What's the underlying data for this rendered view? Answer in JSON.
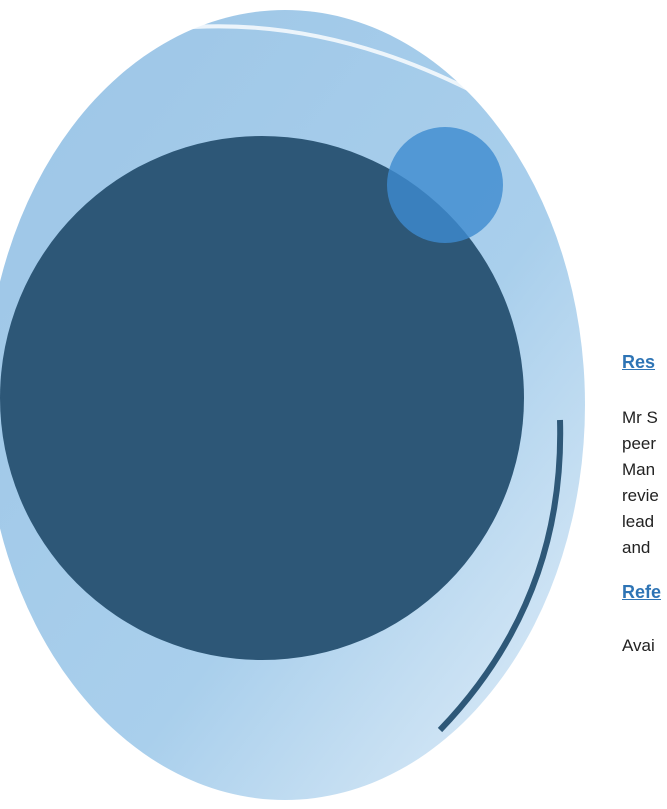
{
  "sections": [
    {
      "heading": "Res",
      "lines": [
        "Mr S",
        "peer",
        "Man",
        "revie",
        "lead",
        "and"
      ]
    },
    {
      "heading": "Refe",
      "lines": [
        "Avai"
      ]
    }
  ]
}
